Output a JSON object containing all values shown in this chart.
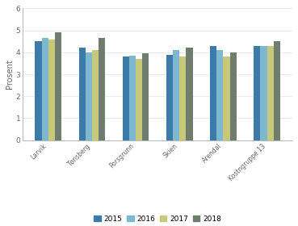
{
  "categories": [
    "Larvik",
    "Tønsberg",
    "Porsgrunn",
    "Skien",
    "Arendal",
    "Kostngruppe 13"
  ],
  "series": {
    "2015": [
      4.5,
      4.2,
      3.8,
      3.9,
      4.3,
      4.3
    ],
    "2016": [
      4.65,
      4.0,
      3.85,
      4.1,
      4.1,
      4.3
    ],
    "2017": [
      4.6,
      4.1,
      3.7,
      3.8,
      3.8,
      4.3
    ],
    "2018": [
      4.9,
      4.65,
      3.95,
      4.2,
      4.0,
      4.5
    ]
  },
  "colors": {
    "2015": "#3c7aaa",
    "2016": "#7db8d0",
    "2017": "#c8c87a",
    "2018": "#6e7d6e"
  },
  "ylabel": "Prosent",
  "ylim": [
    0,
    6
  ],
  "yticks": [
    0,
    1,
    2,
    3,
    4,
    5,
    6
  ],
  "bar_width": 0.15,
  "legend_labels": [
    "2015",
    "2016",
    "2017",
    "2018"
  ],
  "background_color": "#ffffff",
  "grid_color": "#e8e8e8",
  "axis_color": "#aaaaaa"
}
